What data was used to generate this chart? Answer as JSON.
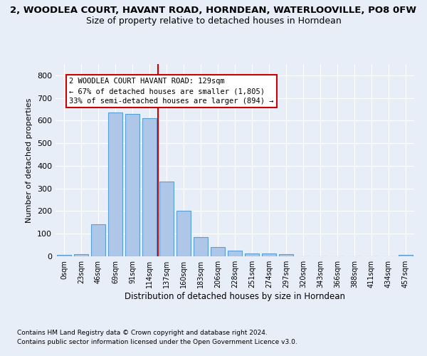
{
  "title": "2, WOODLEA COURT, HAVANT ROAD, HORNDEAN, WATERLOOVILLE, PO8 0FW",
  "subtitle": "Size of property relative to detached houses in Horndean",
  "xlabel": "Distribution of detached houses by size in Horndean",
  "ylabel": "Number of detached properties",
  "bar_color": "#aec6e8",
  "bar_edge_color": "#5a9fd4",
  "categories": [
    "0sqm",
    "23sqm",
    "46sqm",
    "69sqm",
    "91sqm",
    "114sqm",
    "137sqm",
    "160sqm",
    "183sqm",
    "206sqm",
    "228sqm",
    "251sqm",
    "274sqm",
    "297sqm",
    "320sqm",
    "343sqm",
    "366sqm",
    "388sqm",
    "411sqm",
    "434sqm",
    "457sqm"
  ],
  "values": [
    7,
    10,
    143,
    637,
    630,
    610,
    330,
    200,
    85,
    41,
    25,
    12,
    12,
    10,
    0,
    0,
    0,
    0,
    0,
    0,
    7
  ],
  "ylim": [
    0,
    850
  ],
  "yticks": [
    0,
    100,
    200,
    300,
    400,
    500,
    600,
    700,
    800
  ],
  "vline_x": 5.5,
  "vline_color": "#cc0000",
  "annotation_text": "2 WOODLEA COURT HAVANT ROAD: 129sqm\n← 67% of detached houses are smaller (1,805)\n33% of semi-detached houses are larger (894) →",
  "footnote1": "Contains HM Land Registry data © Crown copyright and database right 2024.",
  "footnote2": "Contains public sector information licensed under the Open Government Licence v3.0.",
  "background_color": "#e8eef7",
  "grid_color": "#ffffff",
  "title_fontsize": 9.5,
  "subtitle_fontsize": 9,
  "ylabel_fontsize": 8,
  "xlabel_fontsize": 8.5,
  "bar_width": 0.85
}
